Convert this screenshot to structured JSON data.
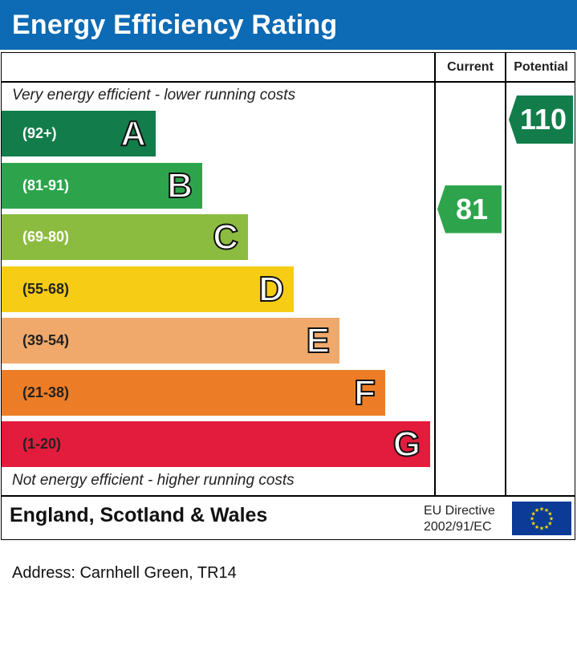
{
  "header": {
    "title": "Energy Efficiency Rating"
  },
  "columns": {
    "current": "Current",
    "potential": "Potential"
  },
  "notes": {
    "top": "Very energy efficient - lower running costs",
    "bottom": "Not energy efficient - higher running costs"
  },
  "chart_data": {
    "type": "bar",
    "categories": [
      "A",
      "B",
      "C",
      "D",
      "E",
      "F",
      "G"
    ],
    "ranges": [
      "(92+)",
      "(81-91)",
      "(69-80)",
      "(55-68)",
      "(39-54)",
      "(21-38)",
      "(1-20)"
    ],
    "colors": [
      "#127d4a",
      "#2da44b",
      "#8cbc3f",
      "#f6cc14",
      "#f0a96a",
      "#ec7d26",
      "#e31b3c"
    ],
    "current": {
      "value": 81,
      "band": "B",
      "color": "#2da44b"
    },
    "potential": {
      "value": 110,
      "band": "A",
      "color": "#127d4a"
    }
  },
  "footer": {
    "region": "England, Scotland & Wales",
    "directive_line1": "EU Directive",
    "directive_line2": "2002/91/EC"
  },
  "address": "Address: Carnhell Green, TR14"
}
